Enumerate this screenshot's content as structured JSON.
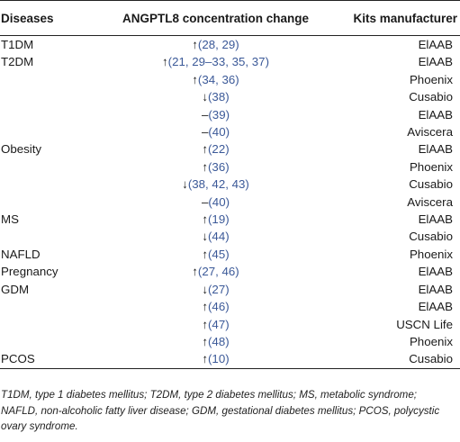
{
  "table": {
    "headers": [
      "Diseases",
      "ANGPTL8 concentration change",
      "Kits manufacturer"
    ],
    "rows": [
      {
        "disease": "T1DM",
        "arrow": "↑",
        "refs": "(28, 29)",
        "kit": "ElAAB"
      },
      {
        "disease": "T2DM",
        "arrow": "↑",
        "refs": "(21, 29–33, 35, 37)",
        "kit": "ElAAB"
      },
      {
        "disease": "",
        "arrow": "↑",
        "refs": "(34, 36)",
        "kit": "Phoenix"
      },
      {
        "disease": "",
        "arrow": "↓",
        "refs": "(38)",
        "kit": "Cusabio"
      },
      {
        "disease": "",
        "arrow": "–",
        "refs": "(39)",
        "kit": "ElAAB"
      },
      {
        "disease": "",
        "arrow": "–",
        "refs": "(40)",
        "kit": "Aviscera"
      },
      {
        "disease": "Obesity",
        "arrow": "↑",
        "refs": "(22)",
        "kit": "ElAAB"
      },
      {
        "disease": "",
        "arrow": "↑",
        "refs": "(36)",
        "kit": "Phoenix"
      },
      {
        "disease": "",
        "arrow": "↓",
        "refs": "(38, 42, 43)",
        "kit": "Cusabio"
      },
      {
        "disease": "",
        "arrow": "–",
        "refs": "(40)",
        "kit": "Aviscera"
      },
      {
        "disease": "MS",
        "arrow": "↑",
        "refs": "(19)",
        "kit": "ElAAB"
      },
      {
        "disease": "",
        "arrow": "↓",
        "refs": "(44)",
        "kit": "Cusabio"
      },
      {
        "disease": "NAFLD",
        "arrow": "↑",
        "refs": "(45)",
        "kit": "Phoenix"
      },
      {
        "disease": "Pregnancy",
        "arrow": "↑",
        "refs": "(27, 46)",
        "kit": "ElAAB"
      },
      {
        "disease": "GDM",
        "arrow": "↓",
        "refs": "(27)",
        "kit": "ElAAB"
      },
      {
        "disease": "",
        "arrow": "↑",
        "refs": "(46)",
        "kit": "ElAAB"
      },
      {
        "disease": "",
        "arrow": "↑",
        "refs": "(47)",
        "kit": "USCN Life"
      },
      {
        "disease": "",
        "arrow": "↑",
        "refs": "(48)",
        "kit": "Phoenix"
      },
      {
        "disease": "PCOS",
        "arrow": "↑",
        "refs": "(10)",
        "kit": "Cusabio"
      }
    ]
  },
  "footnote": "T1DM, type 1 diabetes mellitus; T2DM, type 2 diabetes mellitus; MS, metabolic syndrome; NAFLD, non-alcoholic fatty liver disease; GDM, gestational diabetes mellitus; PCOS, polycystic ovary syndrome.",
  "colors": {
    "reference_link": "#3b5998",
    "rule": "#222222"
  }
}
